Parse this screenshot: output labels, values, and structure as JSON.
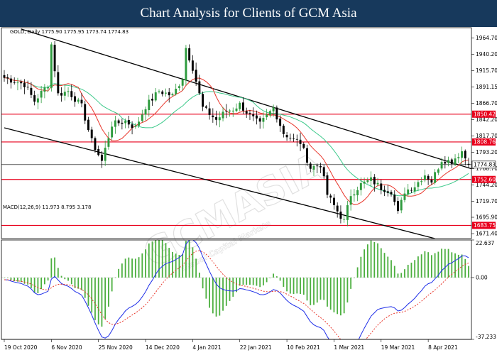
{
  "banner": {
    "title": "Chart Analysis for Clients of GCM Asia"
  },
  "watermark": {
    "text": "GCMASIA",
    "subtext": "Global Capital Markets"
  },
  "colors": {
    "banner_bg": "#17395c",
    "bull": "#2e9b3e",
    "bear": "#000000",
    "ma_fast": "#e8372c",
    "ma_slow": "#3cc98a",
    "level": "#e8001c",
    "channel": "#000000",
    "macd_line": "#1e2ee8",
    "signal_line": "#e8372c",
    "histogram": "#4caf3f"
  },
  "chart_data": [
    {
      "type": "candlestick",
      "title": "",
      "header": "GOLD, Daily  1775.90 1775.95 1773.74 1774.83",
      "instrument": "GOLD",
      "timeframe": "Daily",
      "ohlc_last": {
        "open": 1775.9,
        "high": 1775.95,
        "low": 1773.74,
        "close": 1774.83
      },
      "ylim": [
        1664.0,
        1980.0
      ],
      "y_ticks": [
        1964.7,
        1940.2,
        1915.7,
        1891.15,
        1866.7,
        1842.2,
        1817.7,
        1793.2,
        1768.7,
        1744.2,
        1719.7,
        1695.9,
        1671.4
      ],
      "x_ticks": [
        "19 Oct 2020",
        "6 Nov 2020",
        "25 Nov 2020",
        "14 Dec 2020",
        "4 Jan 2021",
        "22 Jan 2021",
        "10 Feb 2021",
        "1 Mar 2021",
        "19 Mar 2021",
        "8 Apr 2021"
      ],
      "x_tick_index": [
        0,
        14,
        28,
        42,
        56,
        70,
        84,
        98,
        112,
        126
      ],
      "bar_count": 139,
      "price_anchors": [
        [
          0,
          1905
        ],
        [
          6,
          1895
        ],
        [
          9,
          1870
        ],
        [
          13,
          1895
        ],
        [
          14,
          1955
        ],
        [
          16,
          1880
        ],
        [
          19,
          1885
        ],
        [
          23,
          1862
        ],
        [
          26,
          1810
        ],
        [
          29,
          1780
        ],
        [
          32,
          1835
        ],
        [
          36,
          1840
        ],
        [
          39,
          1830
        ],
        [
          42,
          1862
        ],
        [
          46,
          1885
        ],
        [
          50,
          1878
        ],
        [
          53,
          1905
        ],
        [
          54,
          1950
        ],
        [
          56,
          1920
        ],
        [
          59,
          1860
        ],
        [
          63,
          1842
        ],
        [
          66,
          1855
        ],
        [
          68,
          1858
        ],
        [
          70,
          1865
        ],
        [
          73,
          1848
        ],
        [
          76,
          1835
        ],
        [
          80,
          1860
        ],
        [
          83,
          1822
        ],
        [
          86,
          1812
        ],
        [
          88,
          1808
        ],
        [
          91,
          1770
        ],
        [
          94,
          1775
        ],
        [
          96,
          1730
        ],
        [
          99,
          1705
        ],
        [
          101,
          1690
        ],
        [
          103,
          1730
        ],
        [
          106,
          1745
        ],
        [
          109,
          1752
        ],
        [
          112,
          1740
        ],
        [
          115,
          1735
        ],
        [
          117,
          1702
        ],
        [
          119,
          1735
        ],
        [
          122,
          1743
        ],
        [
          125,
          1760
        ],
        [
          127,
          1750
        ],
        [
          130,
          1782
        ],
        [
          133,
          1780
        ],
        [
          136,
          1795
        ],
        [
          138,
          1775
        ]
      ],
      "levels": [
        {
          "name": "resistance",
          "value": 1850.42,
          "label": "1850.42"
        },
        {
          "name": "resistance",
          "value": 1808.76,
          "label": "1808.76"
        },
        {
          "name": "support",
          "value": 1752.6,
          "label": "1752.60"
        },
        {
          "name": "support",
          "value": 1683.75,
          "label": "1683.75"
        }
      ],
      "current_price": {
        "value": 1774.83,
        "label": "1774.83"
      },
      "channel": [
        {
          "from": [
            5,
            1978
          ],
          "to": [
            175,
            1712
          ]
        },
        {
          "from": [
            0,
            1830
          ],
          "to": [
            128,
            1664
          ]
        }
      ],
      "moving_averages": [
        "fast",
        "slow"
      ],
      "grid": false,
      "legend": "none"
    },
    {
      "type": "bar+line",
      "label": "MACD(12,26,9) 11.973 8.795 3.178",
      "params": "12,26,9",
      "values": {
        "macd": 11.973,
        "signal": 8.795,
        "histogram": 3.178
      },
      "ylim": [
        -37.233,
        22.637
      ],
      "y_ticks": [
        {
          "value": 22.637,
          "label": "22.637"
        },
        {
          "value": 0.0,
          "label": "0.00"
        },
        {
          "value": -37.233,
          "label": "-37.233"
        }
      ],
      "grid": false,
      "legend": "none"
    }
  ]
}
